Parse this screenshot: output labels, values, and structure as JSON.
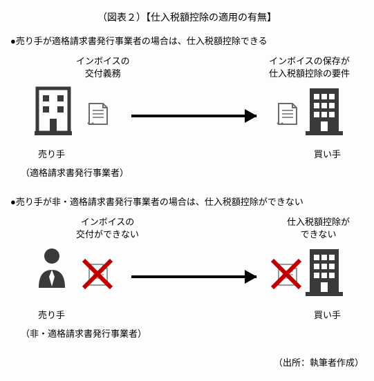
{
  "title": "（図表２）【仕入税額控除の適用の有無】",
  "scenario1": {
    "bullet": "●売り手が適格請求書発行事業者の場合は、仕入税額控除できる",
    "sellerTop": "インボイスの<br>交付義務",
    "buyerTop": "インボイスの保存が<br>仕入税額控除の要件",
    "sellerBottom": "売り手",
    "buyerBottom": "買い手",
    "subnote": "（適格請求書発行事業者）"
  },
  "scenario2": {
    "bullet": "●売り手が非・適格請求書発行事業者の場合は、仕入税額控除ができない",
    "sellerTop": "インボイスの<br>交付ができない",
    "buyerTop": "仕入税額控除が<br>できない",
    "sellerBottom": "売り手",
    "buyerBottom": "買い手",
    "subnote": "（非・適格請求書発行事業者）"
  },
  "source": "（出所：執筆者作成）",
  "colors": {
    "icon": "#3a3a3a",
    "doc": "#6b6b6b",
    "cross": "#c00000"
  }
}
